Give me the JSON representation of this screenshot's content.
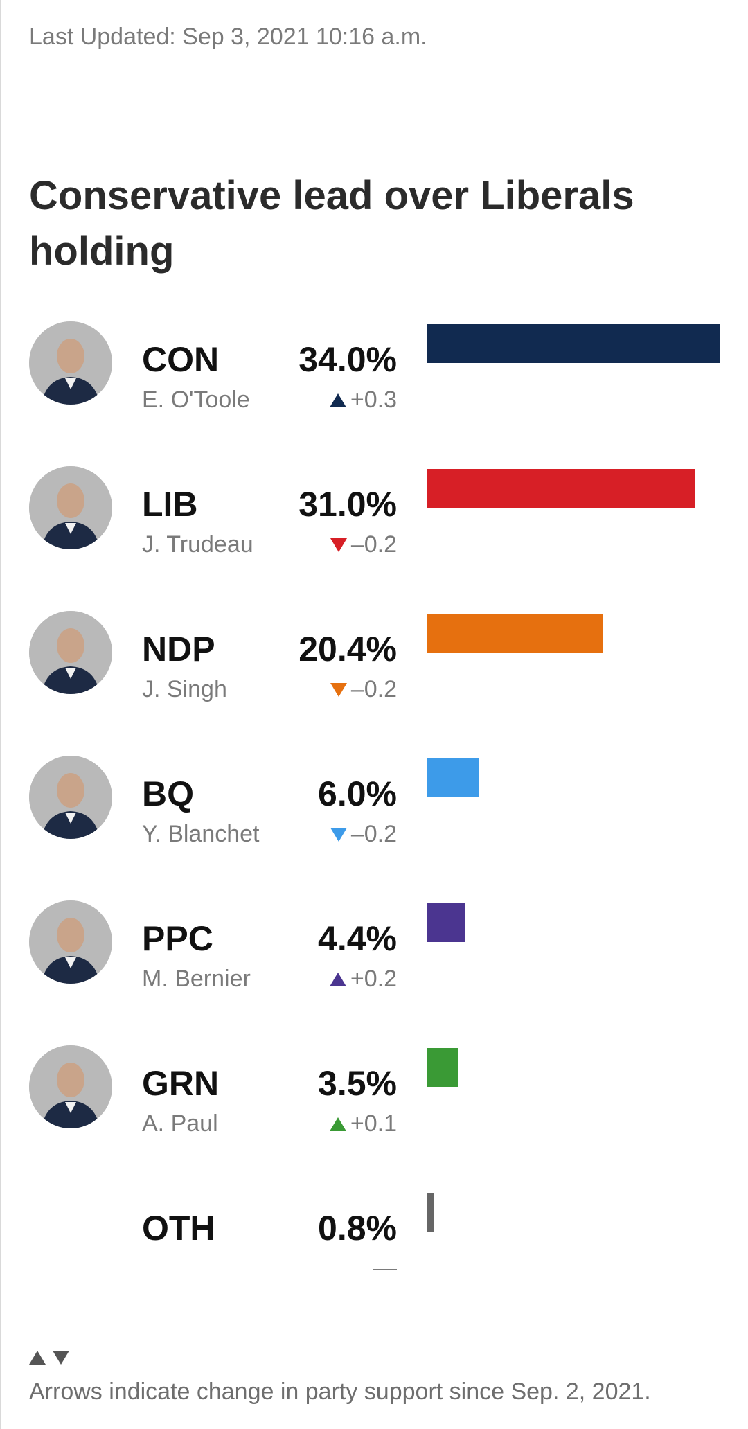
{
  "updated": "Last Updated: Sep 3, 2021 10:16 a.m.",
  "title": "Conservative lead over Liberals holding",
  "footnote": "Arrows indicate change in party support since Sep. 2, 2021.",
  "chart_data": {
    "type": "bar",
    "orientation": "horizontal",
    "title": "Conservative lead over Liberals holding",
    "categories": [
      "CON",
      "LIB",
      "NDP",
      "BQ",
      "PPC",
      "GRN",
      "OTH"
    ],
    "values": [
      34.0,
      31.0,
      20.4,
      6.0,
      4.4,
      3.5,
      0.8
    ],
    "xlim": [
      0,
      34.0
    ],
    "grid": false,
    "legend": "none",
    "rows": [
      {
        "party": "CON",
        "leader": "E. O'Toole",
        "pct": "34.0%",
        "value": 34.0,
        "change": "+0.3",
        "dir": "up",
        "color": "#112a50"
      },
      {
        "party": "LIB",
        "leader": "J. Trudeau",
        "pct": "31.0%",
        "value": 31.0,
        "change": "–0.2",
        "dir": "down",
        "color": "#d71f26"
      },
      {
        "party": "NDP",
        "leader": "J. Singh",
        "pct": "20.4%",
        "value": 20.4,
        "change": "–0.2",
        "dir": "down",
        "color": "#e6700f"
      },
      {
        "party": "BQ",
        "leader": "Y. Blanchet",
        "pct": "6.0%",
        "value": 6.0,
        "change": "–0.2",
        "dir": "down",
        "color": "#3d9be9"
      },
      {
        "party": "PPC",
        "leader": "M. Bernier",
        "pct": "4.4%",
        "value": 4.4,
        "change": "+0.2",
        "dir": "up",
        "color": "#4b3590"
      },
      {
        "party": "GRN",
        "leader": "A. Paul",
        "pct": "3.5%",
        "value": 3.5,
        "change": "+0.1",
        "dir": "up",
        "color": "#3a9a35"
      },
      {
        "party": "OTH",
        "leader": "",
        "pct": "0.8%",
        "value": 0.8,
        "change": "",
        "dir": "none",
        "color": "#666666"
      }
    ]
  }
}
